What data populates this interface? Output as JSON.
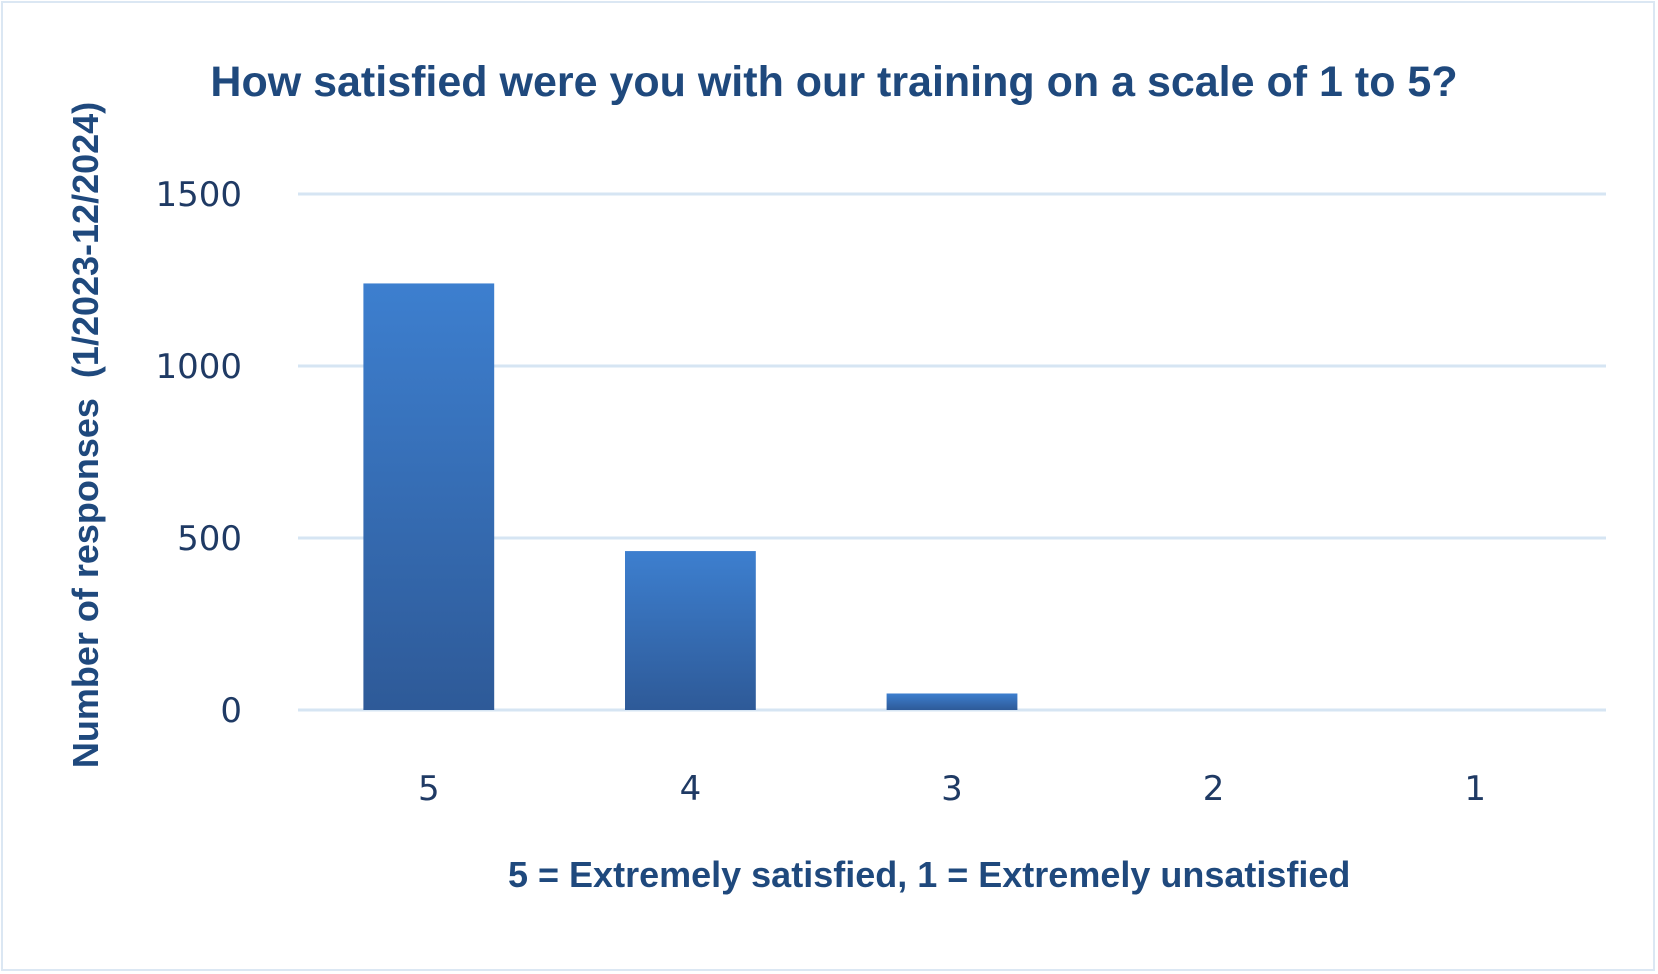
{
  "chart_data": {
    "type": "bar",
    "title": "How satisfied were you with our training on a scale of 1 to 5?",
    "xlabel": "5 = Extremely satisfied, 1 = Extremely unsatisfied",
    "ylabel": "Number of responses  (1/2023-12/2024)",
    "categories": [
      "5",
      "4",
      "3",
      "2",
      "1"
    ],
    "values": [
      1240,
      462,
      48,
      0,
      0
    ],
    "ylim": [
      0,
      1500
    ],
    "yticks": [
      0,
      500,
      1000,
      1500
    ],
    "grid": true,
    "legend": "none",
    "colors": {
      "bar_top": "#3d7fcf",
      "bar_bottom": "#2e5a98",
      "grid": "#d6e5f3",
      "text": "#1f497d"
    }
  }
}
